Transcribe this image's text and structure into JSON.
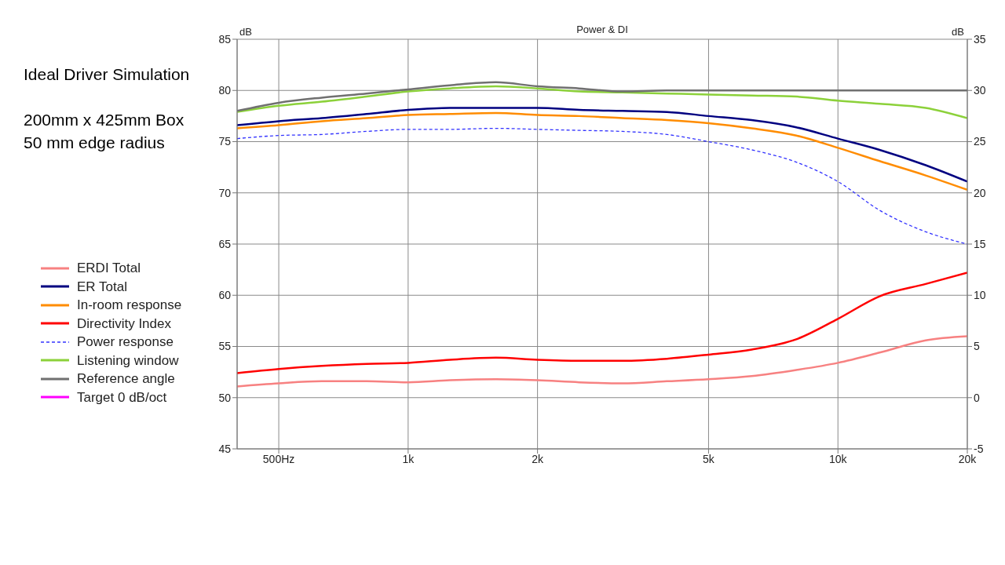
{
  "chart_data": {
    "type": "line",
    "title": "Power & DI",
    "ylabel": "dB",
    "y2label": "dB",
    "annotations": [
      "Ideal Driver Simulation",
      "200mm x 425mm Box",
      "50 mm edge radius"
    ],
    "x": [
      400,
      500,
      630,
      800,
      1000,
      1250,
      1600,
      2000,
      2500,
      3150,
      4000,
      5000,
      6300,
      8000,
      10000,
      12500,
      16000,
      20000
    ],
    "log": "x",
    "xlim": [
      400,
      20000
    ],
    "xticks": [
      {
        "value": 500,
        "label": "500Hz"
      },
      {
        "value": 1000,
        "label": "1k"
      },
      {
        "value": 2000,
        "label": "2k"
      },
      {
        "value": 5000,
        "label": "5k"
      },
      {
        "value": 10000,
        "label": "10k"
      },
      {
        "value": 20000,
        "label": "20k"
      }
    ],
    "ylim": [
      45,
      85
    ],
    "yticks": [
      45,
      50,
      55,
      60,
      65,
      70,
      75,
      80,
      85
    ],
    "y2lim": [
      -5,
      35
    ],
    "y2ticks": [
      -5,
      0,
      5,
      10,
      15,
      20,
      25,
      30,
      35
    ],
    "grid": true,
    "legend": "left",
    "series": [
      {
        "name": "ERDI Total",
        "color": "#f78181",
        "axis": "y2",
        "values": [
          1.1,
          1.4,
          1.6,
          1.6,
          1.5,
          1.7,
          1.8,
          1.7,
          1.5,
          1.4,
          1.6,
          1.8,
          2.1,
          2.7,
          3.4,
          4.4,
          5.6,
          6.0
        ]
      },
      {
        "name": "ER Total",
        "color": "#000080",
        "values": [
          76.6,
          77.0,
          77.3,
          77.7,
          78.1,
          78.3,
          78.3,
          78.3,
          78.1,
          78.0,
          77.9,
          77.5,
          77.1,
          76.4,
          75.3,
          74.2,
          72.7,
          71.1
        ]
      },
      {
        "name": "In-room response",
        "color": "#ff8c00",
        "values": [
          76.3,
          76.6,
          77.0,
          77.3,
          77.6,
          77.7,
          77.8,
          77.6,
          77.5,
          77.3,
          77.1,
          76.8,
          76.3,
          75.6,
          74.4,
          73.1,
          71.7,
          70.3
        ]
      },
      {
        "name": "Directivity Index",
        "color": "#ff0000",
        "axis": "y2",
        "values": [
          2.4,
          2.8,
          3.1,
          3.3,
          3.4,
          3.7,
          3.9,
          3.7,
          3.6,
          3.6,
          3.8,
          4.2,
          4.7,
          5.7,
          7.7,
          9.9,
          11.1,
          12.2
        ]
      },
      {
        "name": "Power response",
        "color": "#3333ff",
        "line_style": "dashed",
        "values": [
          75.3,
          75.6,
          75.7,
          76.0,
          76.2,
          76.2,
          76.3,
          76.2,
          76.1,
          76.0,
          75.7,
          75.0,
          74.2,
          73.0,
          71.1,
          68.3,
          66.2,
          65.0
        ]
      },
      {
        "name": "Listening window",
        "color": "#8cd13a",
        "values": [
          77.9,
          78.5,
          78.9,
          79.4,
          79.9,
          80.2,
          80.4,
          80.2,
          79.9,
          79.8,
          79.7,
          79.6,
          79.5,
          79.4,
          79.0,
          78.7,
          78.3,
          77.3
        ]
      },
      {
        "name": "Reference angle",
        "color": "#707070",
        "values": [
          78.0,
          78.8,
          79.3,
          79.7,
          80.1,
          80.5,
          80.8,
          80.4,
          80.2,
          79.9,
          80.0,
          80.0,
          80.0,
          80.0,
          80.0,
          80.0,
          80.0,
          80.0
        ]
      },
      {
        "name": "Target 0 dB/oct",
        "color": "#ff00ff",
        "values": [
          null,
          null,
          null,
          null,
          null,
          null,
          null,
          null,
          null,
          null,
          null,
          null,
          null,
          null,
          null,
          null,
          null,
          null
        ]
      }
    ]
  }
}
